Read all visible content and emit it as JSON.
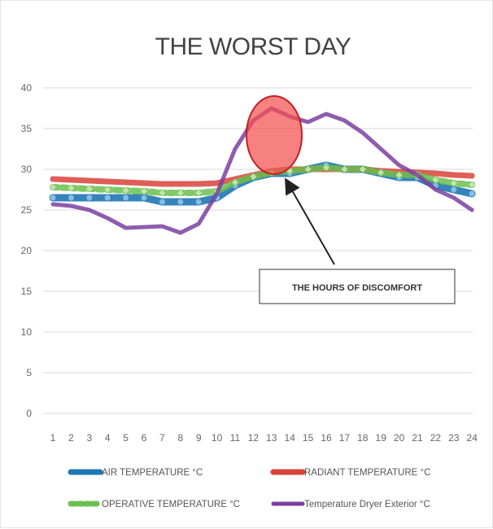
{
  "chart_data": {
    "type": "line",
    "title": "THE WORST DAY",
    "xlabel": "",
    "ylabel": "",
    "x": [
      1,
      2,
      3,
      4,
      5,
      6,
      7,
      8,
      9,
      10,
      11,
      12,
      13,
      14,
      15,
      16,
      17,
      18,
      19,
      20,
      21,
      22,
      23,
      24
    ],
    "ylim": [
      0,
      40
    ],
    "yticks": [
      0,
      5,
      10,
      15,
      20,
      25,
      30,
      35,
      40
    ],
    "grid": true,
    "legend_position": "bottom",
    "series": [
      {
        "name": "AIR TEMPERATURE °C",
        "color": "#1f77b4",
        "values": [
          26.5,
          26.5,
          26.5,
          26.5,
          26.5,
          26.5,
          26,
          26,
          26,
          26.5,
          28,
          29,
          29.5,
          29.5,
          30,
          30.5,
          30,
          30,
          29.5,
          29,
          29,
          28,
          27.5,
          27
        ]
      },
      {
        "name": "RADIANT TEMPERATURE °C",
        "color": "#d9423a",
        "values": [
          28.8,
          28.7,
          28.6,
          28.5,
          28.4,
          28.3,
          28.2,
          28.2,
          28.2,
          28.3,
          28.8,
          29.3,
          29.8,
          30,
          30,
          30,
          30,
          30,
          29.8,
          29.7,
          29.6,
          29.5,
          29.3,
          29.2
        ]
      },
      {
        "name": "OPERATIVE TEMPERATURE °C",
        "color": "#6bbf4e",
        "values": [
          27.8,
          27.7,
          27.6,
          27.5,
          27.4,
          27.3,
          27.1,
          27.1,
          27.1,
          27.3,
          28.4,
          29.1,
          29.6,
          29.8,
          30,
          30.2,
          30,
          30,
          29.6,
          29.3,
          29.3,
          28.7,
          28.3,
          28.1
        ]
      },
      {
        "name": "Temperature Dryer Exterior °C",
        "color": "#7b3fa0",
        "values": [
          25.7,
          25.5,
          25,
          24,
          22.8,
          22.9,
          23,
          22.2,
          23.3,
          27,
          32.5,
          36,
          37.5,
          36.5,
          35.8,
          36.8,
          36,
          34.5,
          32.5,
          30.5,
          29.3,
          27.5,
          26.5,
          25
        ]
      }
    ],
    "annotations": [
      {
        "text": "THE HOURS OF DISCOMFORT"
      }
    ]
  }
}
